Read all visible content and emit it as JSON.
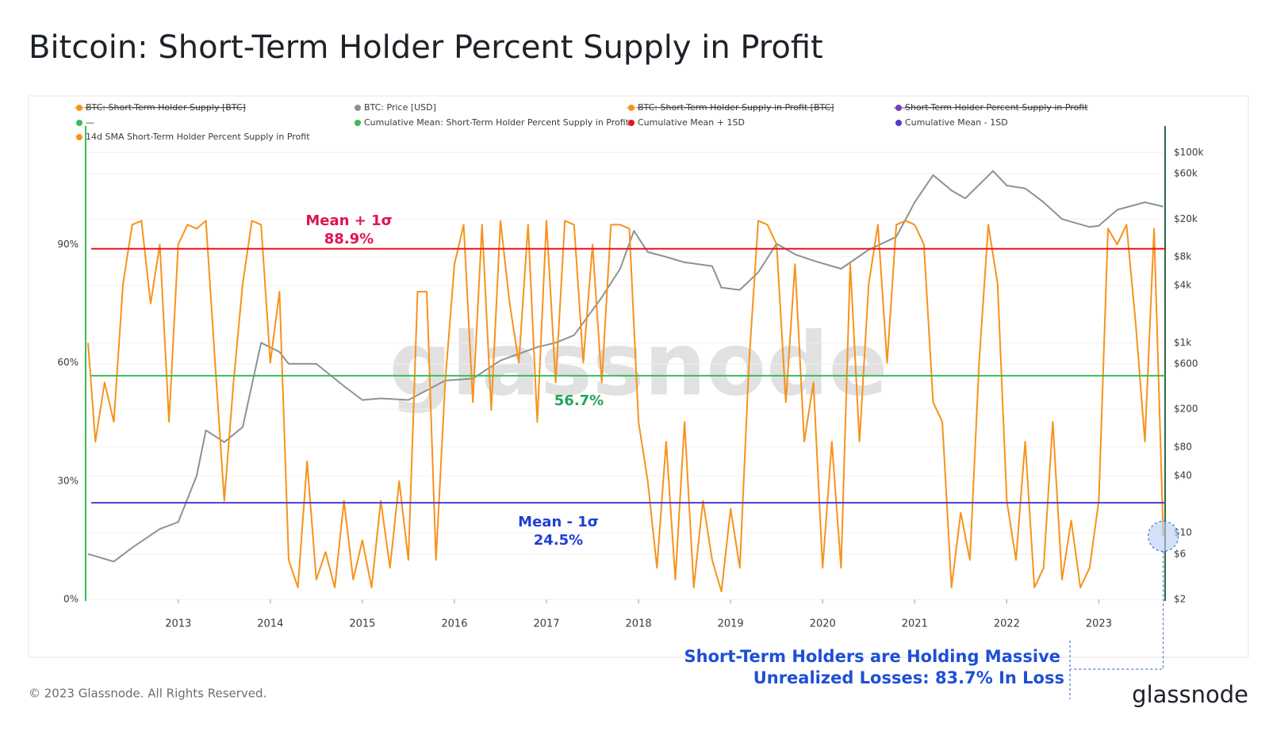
{
  "chart_data": {
    "type": "line",
    "title": "Bitcoin: Short-Term Holder Percent Supply in Profit",
    "legend": [
      {
        "name": "BTC: Short-Term Holder Supply [BTC]",
        "color": "#f7931a",
        "hidden": true
      },
      {
        "name": "BTC: Price [USD]",
        "color": "#8a9490"
      },
      {
        "name": "BTC: Short-Term Holder Supply in Profit [BTC]",
        "color": "#f7931a",
        "hidden": true
      },
      {
        "name": "Short-Term Holder Percent Supply in Profit",
        "color": "#7b3fb8",
        "hidden": true
      },
      {
        "name": "—",
        "color": "#3dbb5a"
      },
      {
        "name": "Cumulative Mean: Short-Term Holder Percent Supply in Profit",
        "color": "#3dbb5a"
      },
      {
        "name": "Cumulative Mean + 1SD",
        "color": "#e8141f"
      },
      {
        "name": "Cumulative Mean - 1SD",
        "color": "#4c3ccf"
      },
      {
        "name": "14d SMA Short-Term Holder Percent Supply in Profit",
        "color": "#f7931a"
      }
    ],
    "series": [
      {
        "legend": 1,
        "color": "#8a9490",
        "axis": "y2",
        "x": [
          2012.02,
          2012.3,
          2012.5,
          2012.8,
          2013.0,
          2013.2,
          2013.3,
          2013.5,
          2013.7,
          2013.9,
          2014.1,
          2014.2,
          2014.5,
          2014.8,
          2015.0,
          2015.2,
          2015.5,
          2015.9,
          2016.2,
          2016.5,
          2016.9,
          2017.1,
          2017.3,
          2017.6,
          2017.8,
          2017.95,
          2018.1,
          2018.3,
          2018.5,
          2018.8,
          2018.9,
          2019.1,
          2019.3,
          2019.5,
          2019.7,
          2019.9,
          2020.2,
          2020.5,
          2020.8,
          2021.0,
          2021.2,
          2021.4,
          2021.55,
          2021.85,
          2022.0,
          2022.2,
          2022.4,
          2022.6,
          2022.9,
          2023.0,
          2023.2,
          2023.5,
          2023.7
        ],
        "values": [
          6,
          5,
          7,
          11,
          13,
          40,
          120,
          90,
          130,
          1000,
          800,
          600,
          600,
          350,
          250,
          260,
          250,
          400,
          420,
          650,
          900,
          1000,
          1200,
          3000,
          6000,
          15000,
          9000,
          8000,
          7000,
          6400,
          3800,
          3600,
          5500,
          11000,
          8500,
          7300,
          6000,
          9500,
          13000,
          30000,
          58000,
          40000,
          33000,
          64000,
          45000,
          42000,
          30000,
          20000,
          16500,
          17000,
          25000,
          30000,
          27000
        ]
      },
      {
        "legend": 8,
        "color": "#f7931a",
        "x": [
          2012.02,
          2012.1,
          2012.2,
          2012.3,
          2012.4,
          2012.5,
          2012.6,
          2012.7,
          2012.8,
          2012.9,
          2013.0,
          2013.1,
          2013.2,
          2013.3,
          2013.4,
          2013.5,
          2013.6,
          2013.7,
          2013.8,
          2013.9,
          2014.0,
          2014.1,
          2014.2,
          2014.3,
          2014.4,
          2014.5,
          2014.6,
          2014.7,
          2014.8,
          2014.9,
          2015.0,
          2015.1,
          2015.2,
          2015.3,
          2015.4,
          2015.5,
          2015.6,
          2015.7,
          2015.8,
          2015.9,
          2016.0,
          2016.1,
          2016.2,
          2016.3,
          2016.4,
          2016.5,
          2016.6,
          2016.7,
          2016.8,
          2016.9,
          2017.0,
          2017.1,
          2017.2,
          2017.3,
          2017.4,
          2017.5,
          2017.6,
          2017.7,
          2017.8,
          2017.9,
          2018.0,
          2018.1,
          2018.2,
          2018.3,
          2018.4,
          2018.5,
          2018.6,
          2018.7,
          2018.8,
          2018.9,
          2019.0,
          2019.1,
          2019.2,
          2019.3,
          2019.4,
          2019.5,
          2019.6,
          2019.7,
          2019.8,
          2019.9,
          2020.0,
          2020.1,
          2020.2,
          2020.3,
          2020.4,
          2020.5,
          2020.6,
          2020.7,
          2020.8,
          2020.9,
          2021.0,
          2021.1,
          2021.2,
          2021.3,
          2021.4,
          2021.5,
          2021.6,
          2021.7,
          2021.8,
          2021.9,
          2022.0,
          2022.1,
          2022.2,
          2022.3,
          2022.4,
          2022.5,
          2022.6,
          2022.7,
          2022.8,
          2022.9,
          2023.0,
          2023.1,
          2023.2,
          2023.3,
          2023.4,
          2023.5,
          2023.6,
          2023.65,
          2023.7
        ],
        "values": [
          65,
          40,
          55,
          45,
          80,
          95,
          96,
          75,
          90,
          45,
          90,
          95,
          94,
          96,
          60,
          25,
          55,
          80,
          96,
          95,
          60,
          78,
          10,
          3,
          35,
          5,
          12,
          3,
          25,
          5,
          15,
          3,
          25,
          8,
          30,
          10,
          78,
          78,
          10,
          55,
          85,
          95,
          50,
          95,
          48,
          96,
          75,
          60,
          95,
          45,
          96,
          55,
          96,
          95,
          60,
          90,
          55,
          95,
          95,
          94,
          45,
          30,
          8,
          40,
          5,
          45,
          3,
          25,
          10,
          2,
          23,
          8,
          60,
          96,
          95,
          90,
          50,
          85,
          40,
          55,
          8,
          40,
          8,
          85,
          40,
          80,
          95,
          60,
          95,
          96,
          95,
          90,
          50,
          45,
          3,
          22,
          10,
          60,
          95,
          80,
          25,
          10,
          40,
          3,
          8,
          45,
          5,
          20,
          3,
          8,
          25,
          94,
          90,
          95,
          70,
          40,
          94,
          55,
          16
        ]
      }
    ],
    "reference_lines": [
      {
        "legend": 6,
        "label": "Mean + 1σ",
        "value": 88.9,
        "value_label": "88.9%"
      },
      {
        "legend": 5,
        "value": 56.7,
        "value_label": "56.7%"
      },
      {
        "legend": 7,
        "label": "Mean - 1σ",
        "value": 24.5,
        "value_label": "24.5%"
      }
    ],
    "xlim": [
      2012.02,
      2023.72
    ],
    "xticks": [
      2013,
      2014,
      2015,
      2016,
      2017,
      2018,
      2019,
      2020,
      2021,
      2022,
      2023
    ],
    "ylim": [
      0,
      120
    ],
    "yticks": [
      {
        "value": 0,
        "label": "0%"
      },
      {
        "value": 30,
        "label": "30%"
      },
      {
        "value": 60,
        "label": "60%"
      },
      {
        "value": 90,
        "label": "90%"
      }
    ],
    "y2lim": [
      2,
      190000
    ],
    "y2log": true,
    "y2ticks": [
      {
        "value": 2,
        "label": "$2"
      },
      {
        "value": 6,
        "label": "$6"
      },
      {
        "value": 10,
        "label": "$10"
      },
      {
        "value": 40,
        "label": "$40"
      },
      {
        "value": 80,
        "label": "$80"
      },
      {
        "value": 200,
        "label": "$200"
      },
      {
        "value": 600,
        "label": "$600"
      },
      {
        "value": 1000,
        "label": "$1k"
      },
      {
        "value": 4000,
        "label": "$4k"
      },
      {
        "value": 8000,
        "label": "$8k"
      },
      {
        "value": 20000,
        "label": "$20k"
      },
      {
        "value": 60000,
        "label": "$60k"
      },
      {
        "value": 100000,
        "label": "$100k"
      }
    ],
    "grid": true,
    "watermark": "glassnode",
    "callout": [
      "Short-Term Holders are Holding Massive",
      "Unrealized Losses: 83.7% In Loss"
    ],
    "footer": "© 2023 Glassnode. All Rights Reserved.",
    "logo": "glassnode"
  }
}
